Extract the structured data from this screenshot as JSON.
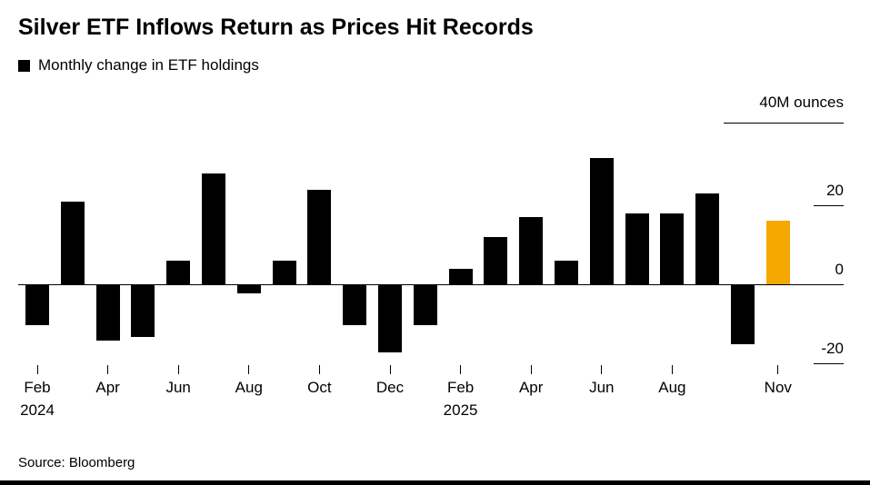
{
  "header": {
    "title": "Silver ETF Inflows Return as Prices Hit Records",
    "legend_label": "Monthly change in ETF holdings",
    "unit_label": "40M ounces"
  },
  "footer": {
    "source": "Source: Bloomberg"
  },
  "chart_data": {
    "type": "bar",
    "title": "Silver ETF Inflows Return as Prices Hit Records",
    "legend": "Monthly change in ETF holdings",
    "ylabel": "40M ounces",
    "ylim": [
      -25,
      40
    ],
    "yticks": [
      20,
      0,
      -20
    ],
    "categories": [
      "Feb 2024",
      "Mar 2024",
      "Apr 2024",
      "May 2024",
      "Jun 2024",
      "Jul 2024",
      "Aug 2024",
      "Sep 2024",
      "Oct 2024",
      "Nov 2024",
      "Dec 2024",
      "Jan 2025",
      "Feb 2025",
      "Mar 2025",
      "Apr 2025",
      "May 2025",
      "Jun 2025",
      "Jul 2025",
      "Aug 2025",
      "Sep 2025",
      "Oct 2025",
      "Nov 2025"
    ],
    "values": [
      -10,
      21,
      -14,
      -13,
      6,
      28,
      -2,
      6,
      24,
      -10,
      -17,
      -10,
      4,
      12,
      17,
      6,
      32,
      18,
      18,
      23,
      -15,
      16
    ],
    "bar_color": "#000000",
    "highlight_color": "#F5A800",
    "highlight_index": 21,
    "x_ticks": [
      {
        "index": 0,
        "label": "Feb",
        "year": "2024"
      },
      {
        "index": 2,
        "label": "Apr"
      },
      {
        "index": 4,
        "label": "Jun"
      },
      {
        "index": 6,
        "label": "Aug"
      },
      {
        "index": 8,
        "label": "Oct"
      },
      {
        "index": 10,
        "label": "Dec"
      },
      {
        "index": 12,
        "label": "Feb",
        "year": "2025"
      },
      {
        "index": 14,
        "label": "Apr"
      },
      {
        "index": 16,
        "label": "Jun"
      },
      {
        "index": 18,
        "label": "Aug"
      },
      {
        "index": 21,
        "label": "Nov"
      }
    ],
    "source": "Source: Bloomberg"
  }
}
